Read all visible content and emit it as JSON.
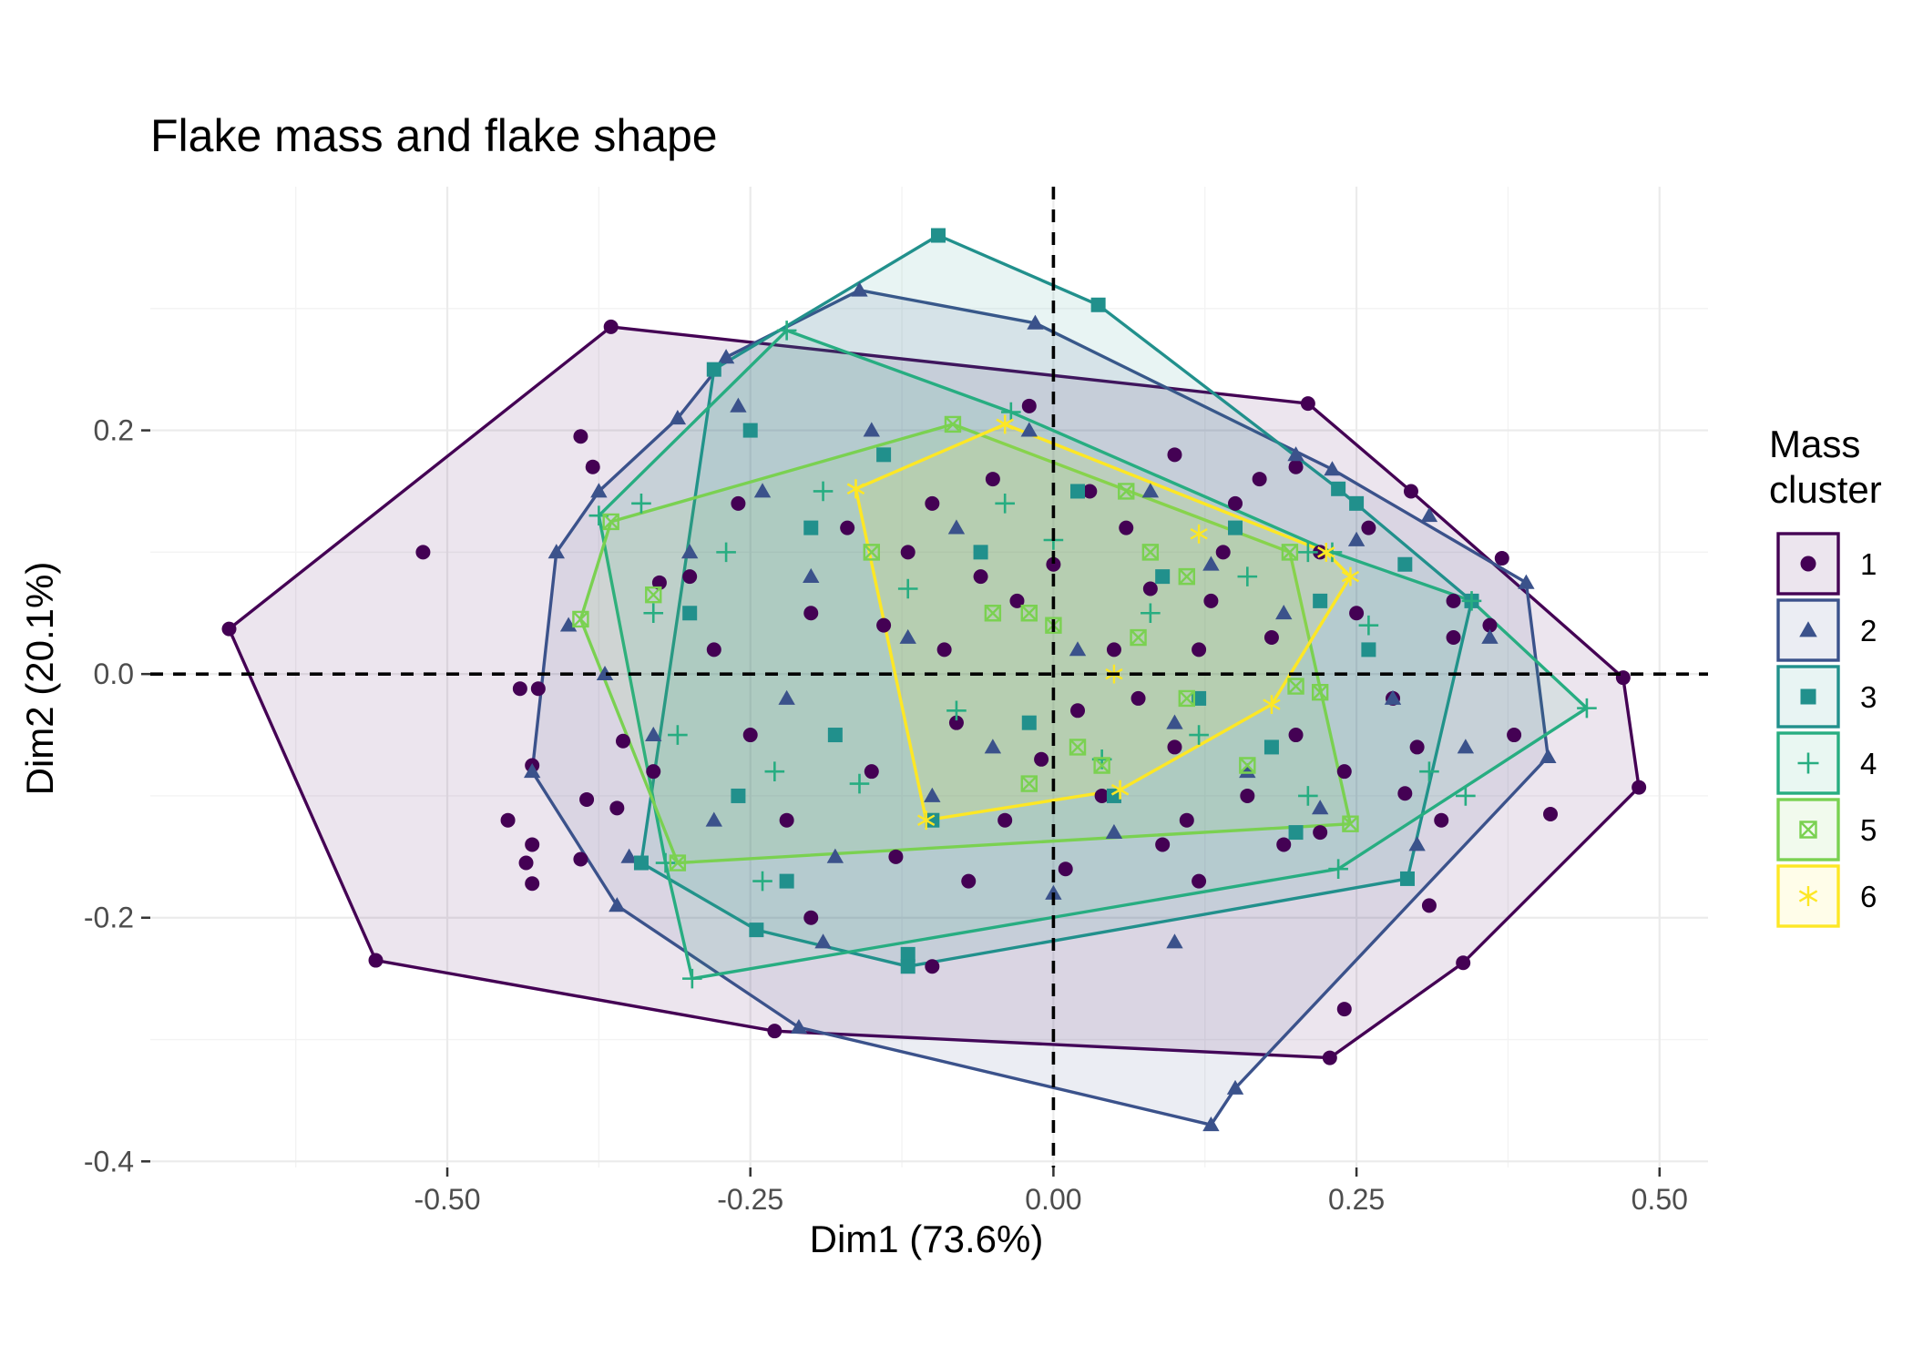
{
  "chart_data": {
    "type": "scatter",
    "title": "Flake mass and flake shape",
    "xlabel": "Dim1 (73.6%)",
    "ylabel": "Dim2 (20.1%)",
    "xlim": [
      -0.745,
      0.54
    ],
    "ylim": [
      -0.405,
      0.4
    ],
    "x_ticks": [
      -0.5,
      -0.25,
      0.0,
      0.25,
      0.5
    ],
    "x_tick_labels": [
      "-0.50",
      "-0.25",
      "0.00",
      "0.25",
      "0.50"
    ],
    "y_ticks": [
      -0.4,
      -0.2,
      0.0,
      0.2
    ],
    "y_tick_labels": [
      "-0.4",
      "-0.2",
      "0.0",
      "0.2"
    ],
    "reference_lines": {
      "x": 0.0,
      "y": 0.0,
      "style": "dashed"
    },
    "grid": true,
    "legend": {
      "title": [
        "Mass",
        "cluster"
      ],
      "position": "right"
    },
    "series": [
      {
        "name": "1",
        "color": "#440154",
        "shape": "circle",
        "hull": [
          [
            -0.68,
            0.037
          ],
          [
            -0.365,
            0.285
          ],
          [
            0.21,
            0.222
          ],
          [
            0.295,
            0.15
          ],
          [
            0.47,
            -0.003
          ],
          [
            0.483,
            -0.093
          ],
          [
            0.338,
            -0.237
          ],
          [
            0.228,
            -0.315
          ],
          [
            -0.23,
            -0.293
          ],
          [
            -0.559,
            -0.235
          ]
        ],
        "points": [
          [
            -0.38,
            0.17
          ],
          [
            -0.52,
            0.1
          ],
          [
            -0.39,
            0.195
          ],
          [
            -0.44,
            -0.012
          ],
          [
            -0.425,
            -0.012
          ],
          [
            -0.43,
            -0.075
          ],
          [
            -0.45,
            -0.12
          ],
          [
            -0.43,
            -0.14
          ],
          [
            -0.435,
            -0.155
          ],
          [
            -0.43,
            -0.172
          ],
          [
            -0.39,
            -0.152
          ],
          [
            -0.385,
            -0.103
          ],
          [
            -0.36,
            -0.11
          ],
          [
            -0.355,
            -0.055
          ],
          [
            -0.325,
            0.075
          ],
          [
            0.29,
            -0.098
          ],
          [
            0.32,
            -0.12
          ],
          [
            0.41,
            -0.115
          ],
          [
            0.31,
            -0.19
          ],
          [
            0.24,
            -0.275
          ],
          [
            0.2,
            0.17
          ],
          [
            0.22,
            -0.13
          ],
          [
            0.36,
            0.04
          ],
          [
            0.38,
            -0.05
          ],
          [
            0.37,
            0.095
          ],
          [
            0.33,
            0.03
          ],
          [
            0.3,
            -0.06
          ],
          [
            -0.2,
            -0.2
          ],
          [
            -0.1,
            -0.24
          ],
          [
            0.1,
            0.18
          ],
          [
            0.12,
            -0.17
          ],
          [
            -0.02,
            0.22
          ],
          [
            0.15,
            0.14
          ],
          [
            -0.03,
            0.06
          ],
          [
            0.05,
            0.02
          ],
          [
            0.02,
            -0.03
          ],
          [
            -0.06,
            0.08
          ],
          [
            0.08,
            0.07
          ],
          [
            -0.08,
            -0.04
          ],
          [
            0.1,
            -0.06
          ],
          [
            -0.12,
            0.1
          ],
          [
            0.14,
            0.1
          ],
          [
            0.04,
            -0.1
          ],
          [
            -0.1,
            0.14
          ],
          [
            0.18,
            0.03
          ],
          [
            -0.15,
            -0.08
          ],
          [
            0.2,
            -0.05
          ],
          [
            -0.2,
            0.05
          ],
          [
            0.25,
            0.05
          ],
          [
            -0.25,
            -0.05
          ],
          [
            0.06,
            0.12
          ],
          [
            -0.04,
            -0.12
          ],
          [
            0.0,
            0.09
          ],
          [
            0.03,
            0.15
          ],
          [
            -0.05,
            0.16
          ],
          [
            0.16,
            -0.1
          ],
          [
            -0.17,
            0.12
          ],
          [
            0.22,
            0.1
          ],
          [
            -0.22,
            -0.12
          ],
          [
            0.28,
            -0.02
          ],
          [
            -0.28,
            0.02
          ],
          [
            0.12,
            0.02
          ],
          [
            -0.01,
            -0.07
          ],
          [
            0.07,
            -0.02
          ],
          [
            -0.09,
            0.02
          ],
          [
            0.11,
            -0.12
          ],
          [
            -0.13,
            -0.15
          ],
          [
            0.17,
            0.16
          ],
          [
            -0.3,
            0.08
          ],
          [
            0.33,
            0.06
          ],
          [
            -0.33,
            -0.08
          ],
          [
            0.26,
            0.12
          ],
          [
            -0.26,
            0.14
          ],
          [
            0.09,
            -0.14
          ],
          [
            -0.07,
            -0.17
          ],
          [
            0.01,
            -0.16
          ],
          [
            0.13,
            0.06
          ],
          [
            -0.14,
            0.04
          ],
          [
            0.19,
            -0.14
          ],
          [
            0.24,
            -0.08
          ]
        ]
      },
      {
        "name": "2",
        "color": "#3b528b",
        "shape": "triangle",
        "hull": [
          [
            -0.16,
            0.315
          ],
          [
            -0.015,
            0.288
          ],
          [
            0.23,
            0.168
          ],
          [
            0.39,
            0.075
          ],
          [
            0.408,
            -0.068
          ],
          [
            0.15,
            -0.34
          ],
          [
            0.13,
            -0.37
          ],
          [
            -0.21,
            -0.29
          ],
          [
            -0.36,
            -0.19
          ],
          [
            -0.43,
            -0.08
          ],
          [
            -0.41,
            0.1
          ],
          [
            -0.375,
            0.15
          ],
          [
            -0.31,
            0.21
          ],
          [
            -0.27,
            0.26
          ]
        ],
        "points": [
          [
            -0.4,
            0.04
          ],
          [
            -0.37,
            0.0
          ],
          [
            -0.33,
            -0.05
          ],
          [
            -0.3,
            0.1
          ],
          [
            -0.28,
            -0.12
          ],
          [
            -0.24,
            0.15
          ],
          [
            -0.22,
            -0.02
          ],
          [
            -0.2,
            0.08
          ],
          [
            -0.18,
            -0.15
          ],
          [
            -0.15,
            0.2
          ],
          [
            -0.12,
            0.03
          ],
          [
            -0.1,
            -0.1
          ],
          [
            -0.08,
            0.12
          ],
          [
            -0.05,
            -0.06
          ],
          [
            -0.02,
            0.2
          ],
          [
            0.02,
            0.02
          ],
          [
            0.05,
            -0.13
          ],
          [
            0.08,
            0.15
          ],
          [
            0.1,
            -0.04
          ],
          [
            0.13,
            0.09
          ],
          [
            0.16,
            -0.08
          ],
          [
            0.19,
            0.05
          ],
          [
            0.22,
            -0.11
          ],
          [
            0.25,
            0.11
          ],
          [
            0.28,
            -0.02
          ],
          [
            0.31,
            0.13
          ],
          [
            0.34,
            -0.06
          ],
          [
            0.36,
            0.03
          ],
          [
            0.1,
            -0.22
          ],
          [
            -0.35,
            -0.15
          ],
          [
            -0.26,
            0.22
          ],
          [
            0.3,
            -0.14
          ],
          [
            0.0,
            -0.18
          ],
          [
            -0.19,
            -0.22
          ],
          [
            0.2,
            0.18
          ]
        ]
      },
      {
        "name": "3",
        "color": "#21908c",
        "shape": "square",
        "hull": [
          [
            -0.095,
            0.36
          ],
          [
            0.037,
            0.303
          ],
          [
            0.235,
            0.152
          ],
          [
            0.345,
            0.06
          ],
          [
            0.292,
            -0.168
          ],
          [
            -0.12,
            -0.24
          ],
          [
            -0.245,
            -0.21
          ],
          [
            -0.34,
            -0.155
          ],
          [
            -0.28,
            0.25
          ]
        ],
        "points": [
          [
            -0.25,
            0.2
          ],
          [
            -0.3,
            0.05
          ],
          [
            -0.26,
            -0.1
          ],
          [
            -0.2,
            0.12
          ],
          [
            -0.18,
            -0.05
          ],
          [
            -0.14,
            0.18
          ],
          [
            -0.1,
            -0.12
          ],
          [
            -0.06,
            0.1
          ],
          [
            -0.02,
            -0.04
          ],
          [
            0.02,
            0.15
          ],
          [
            0.05,
            -0.1
          ],
          [
            0.09,
            0.08
          ],
          [
            0.12,
            -0.02
          ],
          [
            0.15,
            0.12
          ],
          [
            0.18,
            -0.06
          ],
          [
            0.22,
            0.06
          ],
          [
            0.26,
            0.02
          ],
          [
            0.29,
            0.09
          ],
          [
            -0.12,
            -0.23
          ],
          [
            0.25,
            0.14
          ],
          [
            -0.22,
            -0.17
          ],
          [
            0.2,
            -0.13
          ]
        ]
      },
      {
        "name": "4",
        "color": "#27ad81",
        "shape": "plus",
        "hull": [
          [
            -0.22,
            0.282
          ],
          [
            -0.035,
            0.215
          ],
          [
            0.23,
            0.1
          ],
          [
            0.345,
            0.06
          ],
          [
            0.44,
            -0.028
          ],
          [
            0.235,
            -0.16
          ],
          [
            -0.298,
            -0.25
          ],
          [
            -0.32,
            -0.155
          ],
          [
            -0.375,
            0.13
          ]
        ],
        "points": [
          [
            -0.34,
            0.14
          ],
          [
            -0.33,
            0.05
          ],
          [
            -0.31,
            -0.05
          ],
          [
            -0.27,
            0.1
          ],
          [
            -0.23,
            -0.08
          ],
          [
            -0.19,
            0.15
          ],
          [
            -0.16,
            -0.09
          ],
          [
            -0.12,
            0.07
          ],
          [
            -0.08,
            -0.03
          ],
          [
            -0.04,
            0.14
          ],
          [
            0.0,
            0.11
          ],
          [
            0.04,
            -0.07
          ],
          [
            0.08,
            0.05
          ],
          [
            0.12,
            -0.05
          ],
          [
            0.16,
            0.08
          ],
          [
            0.21,
            -0.1
          ],
          [
            0.26,
            0.04
          ],
          [
            0.31,
            -0.08
          ],
          [
            0.34,
            -0.1
          ],
          [
            -0.24,
            -0.17
          ],
          [
            0.21,
            0.1
          ]
        ]
      },
      {
        "name": "5",
        "color": "#7ad151",
        "shape": "square-cross",
        "hull": [
          [
            -0.083,
            0.205
          ],
          [
            0.195,
            0.1
          ],
          [
            0.245,
            -0.123
          ],
          [
            -0.31,
            -0.155
          ],
          [
            -0.39,
            0.045
          ],
          [
            -0.365,
            0.125
          ]
        ],
        "points": [
          [
            -0.33,
            0.065
          ],
          [
            -0.15,
            0.1
          ],
          [
            -0.02,
            0.05
          ],
          [
            0.08,
            0.1
          ],
          [
            0.11,
            0.08
          ],
          [
            0.06,
            0.15
          ],
          [
            0.02,
            -0.06
          ],
          [
            0.04,
            -0.075
          ],
          [
            0.11,
            -0.02
          ],
          [
            0.16,
            -0.075
          ],
          [
            0.2,
            -0.01
          ],
          [
            0.07,
            0.03
          ],
          [
            -0.02,
            -0.09
          ],
          [
            -0.05,
            0.05
          ],
          [
            0.0,
            0.04
          ],
          [
            0.22,
            -0.015
          ]
        ]
      },
      {
        "name": "6",
        "color": "#fde725",
        "shape": "asterisk",
        "hull": [
          [
            -0.04,
            0.205
          ],
          [
            0.225,
            0.1
          ],
          [
            0.245,
            0.08
          ],
          [
            0.18,
            -0.025
          ],
          [
            0.055,
            -0.095
          ],
          [
            -0.105,
            -0.12
          ],
          [
            -0.163,
            0.152
          ]
        ],
        "points": [
          [
            0.05,
            0.0
          ],
          [
            0.12,
            0.115
          ],
          [
            -0.04,
            0.205
          ],
          [
            0.225,
            0.1
          ],
          [
            -0.163,
            0.152
          ],
          [
            0.055,
            -0.095
          ]
        ]
      }
    ]
  }
}
